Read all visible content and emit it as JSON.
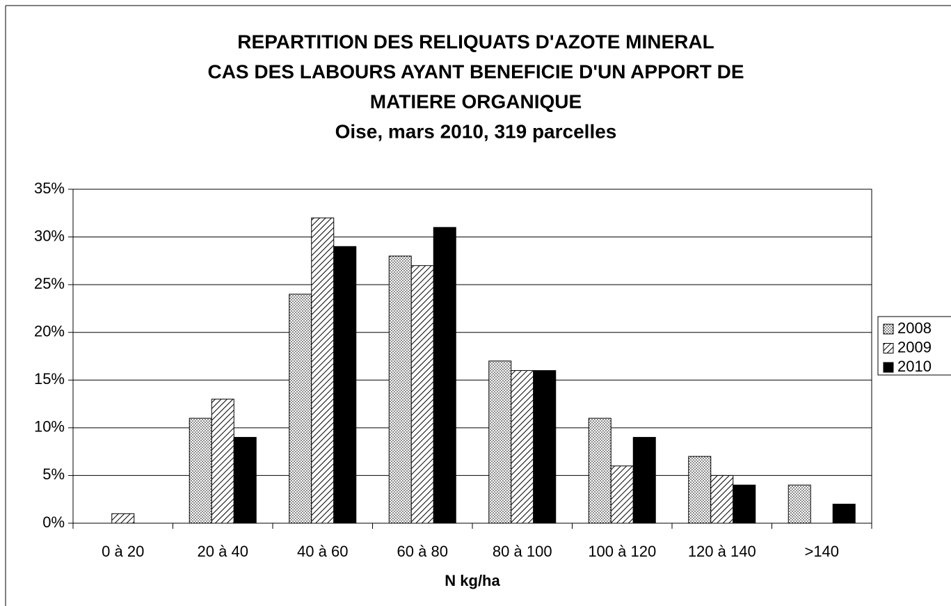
{
  "chart_data": {
    "type": "bar",
    "title": [
      "REPARTITION DES RELIQUATS D'AZOTE MINERAL",
      "CAS DES LABOURS AYANT BENEFICIE D'UN APPORT DE",
      "MATIERE ORGANIQUE"
    ],
    "subtitle": "Oise, mars 2010, 319 parcelles",
    "x_label": "N kg/ha",
    "categories": [
      "0 à 20",
      "20 à 40",
      "40 à 60",
      "60 à 80",
      "80 à 100",
      "100 à 120",
      "120 à 140",
      ">140"
    ],
    "series": [
      {
        "name": "2008",
        "color": "#000000",
        "pattern": "dots",
        "values": [
          0,
          11,
          24,
          28,
          17,
          11,
          7,
          4
        ]
      },
      {
        "name": "2009",
        "color": "#000000",
        "pattern": "hatch",
        "values": [
          1,
          13,
          32,
          27,
          16,
          6,
          5,
          0
        ]
      },
      {
        "name": "2010",
        "color": "#000000",
        "pattern": "solid",
        "values": [
          0,
          9,
          29,
          31,
          16,
          9,
          4,
          2
        ]
      }
    ],
    "ylim": [
      0,
      35
    ],
    "yticks": [
      {
        "value": 0,
        "label": "0%"
      },
      {
        "value": 5,
        "label": "5%"
      },
      {
        "value": 10,
        "label": "10%"
      },
      {
        "value": 15,
        "label": "15%"
      },
      {
        "value": 20,
        "label": "20%"
      },
      {
        "value": 25,
        "label": "25%"
      },
      {
        "value": 30,
        "label": "30%"
      },
      {
        "value": 35,
        "label": "35%"
      }
    ],
    "grid": true,
    "legend": "right"
  }
}
